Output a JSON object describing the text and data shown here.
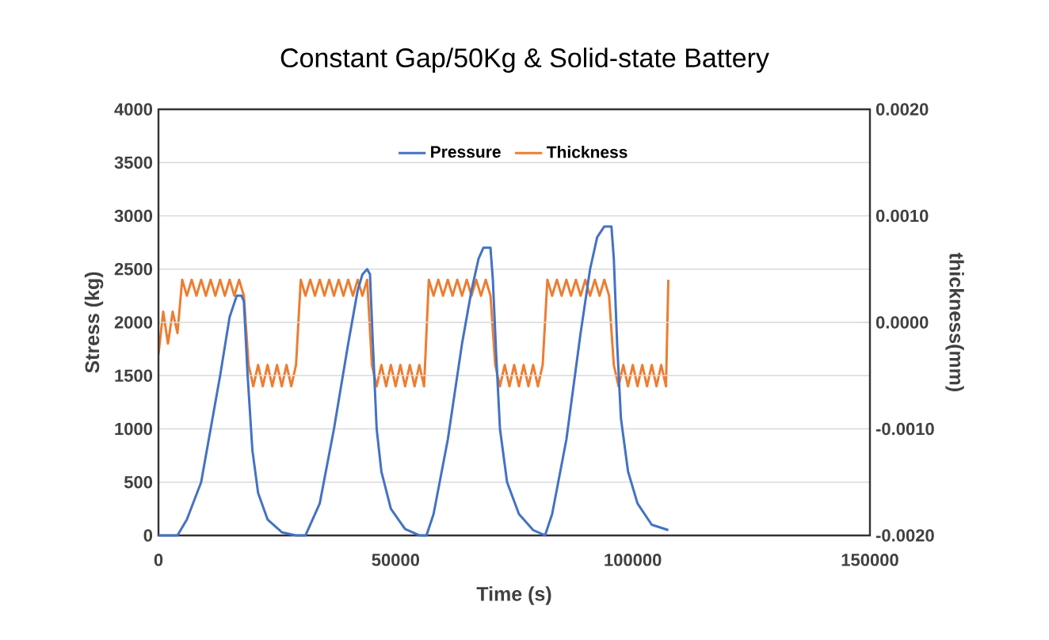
{
  "chart_data": {
    "type": "line",
    "title": "Constant Gap/50Kg & Solid-state Battery",
    "xlabel": "Time (s)",
    "ylabel": "Stress (kg)",
    "y2label": "thickness(mm)",
    "xlim": [
      0,
      150000
    ],
    "xticks": [
      0,
      50000,
      100000,
      150000
    ],
    "ylim": [
      0,
      4000
    ],
    "yticks": [
      0,
      500,
      1000,
      1500,
      2000,
      2500,
      3000,
      3500,
      4000
    ],
    "y2lim": [
      -0.002,
      0.002
    ],
    "y2ticks": [
      {
        "value": -0.002,
        "label": "-0.0020"
      },
      {
        "value": -0.001,
        "label": "-0.0010"
      },
      {
        "value": 0,
        "label": "0.0000"
      },
      {
        "value": 0.001,
        "label": "0.0010"
      },
      {
        "value": 0.002,
        "label": "0.0020"
      }
    ],
    "grid": "y",
    "legend": "top",
    "marker": "none",
    "line_style": "solid",
    "series": [
      {
        "name": "Pressure",
        "color": "#4472c4",
        "x": [
          0,
          4000,
          6000,
          9000,
          11000,
          13000,
          15000,
          16500,
          17500,
          18000,
          18800,
          19800,
          21000,
          23000,
          26000,
          29000,
          31000,
          34000,
          37000,
          40000,
          42000,
          43000,
          44000,
          44600,
          45200,
          46000,
          47000,
          49000,
          52000,
          55000,
          56500,
          58000,
          61000,
          64000,
          66000,
          67500,
          68500,
          70000,
          70500,
          71200,
          72000,
          73500,
          76000,
          79000,
          81500,
          83000,
          86000,
          89000,
          91000,
          92500,
          94000,
          95500,
          96000,
          96700,
          97500,
          99000,
          101000,
          104000,
          107500
        ],
        "values": [
          0,
          0,
          150,
          500,
          1000,
          1500,
          2050,
          2250,
          2250,
          2200,
          1500,
          800,
          400,
          150,
          30,
          0,
          0,
          300,
          1000,
          1800,
          2300,
          2450,
          2500,
          2450,
          1800,
          1000,
          600,
          250,
          60,
          0,
          0,
          200,
          900,
          1800,
          2300,
          2600,
          2700,
          2700,
          2400,
          1700,
          1000,
          500,
          200,
          50,
          0,
          200,
          900,
          1900,
          2500,
          2800,
          2900,
          2900,
          2600,
          1800,
          1100,
          600,
          300,
          100,
          50
        ]
      },
      {
        "name": "Thickness",
        "color": "#ed7d31",
        "axis": "y2",
        "x": [
          0,
          1000,
          2000,
          3000,
          4000,
          5000,
          6000,
          7000,
          8000,
          9000,
          10000,
          11000,
          12000,
          13000,
          14000,
          15000,
          16000,
          17000,
          18000,
          19000,
          20000,
          21000,
          22000,
          23000,
          24000,
          25000,
          26000,
          27000,
          28000,
          29000,
          30000,
          31000,
          32000,
          33000,
          34000,
          35000,
          36000,
          37000,
          38000,
          39000,
          40000,
          41000,
          42000,
          43000,
          44000,
          45000,
          46000,
          47000,
          48000,
          49000,
          50000,
          51000,
          52000,
          53000,
          54000,
          55000,
          56000,
          57000,
          58000,
          59000,
          60000,
          61000,
          62000,
          63000,
          64000,
          65000,
          66000,
          67000,
          68000,
          69000,
          70000,
          71000,
          72000,
          73000,
          74000,
          75000,
          76000,
          77000,
          78000,
          79000,
          80000,
          81000,
          82000,
          83000,
          84000,
          85000,
          86000,
          87000,
          88000,
          89000,
          90000,
          91000,
          92000,
          93000,
          94000,
          95000,
          96000,
          97000,
          98000,
          99000,
          100000,
          101000,
          102000,
          103000,
          104000,
          105000,
          106000,
          107000,
          107500
        ],
        "values": [
          -0.0003,
          0.0001,
          -0.0002,
          0.0001,
          -0.0001,
          0.0004,
          0.00025,
          0.0004,
          0.00025,
          0.0004,
          0.00025,
          0.0004,
          0.00025,
          0.0004,
          0.00025,
          0.0004,
          0.00025,
          0.0004,
          0.00025,
          -0.0004,
          -0.0006,
          -0.0004,
          -0.0006,
          -0.0004,
          -0.0006,
          -0.0004,
          -0.0006,
          -0.0004,
          -0.0006,
          -0.0004,
          0.0004,
          0.00025,
          0.0004,
          0.00025,
          0.0004,
          0.00025,
          0.0004,
          0.00025,
          0.0004,
          0.00025,
          0.0004,
          0.00025,
          0.0004,
          0.00025,
          0.0004,
          -0.0004,
          -0.0006,
          -0.0004,
          -0.0006,
          -0.0004,
          -0.0006,
          -0.0004,
          -0.0006,
          -0.0004,
          -0.0006,
          -0.0004,
          -0.0006,
          0.0004,
          0.00025,
          0.0004,
          0.00025,
          0.0004,
          0.00025,
          0.0004,
          0.00025,
          0.0004,
          0.00025,
          0.0004,
          0.00025,
          0.0004,
          0.00025,
          -0.0004,
          -0.0006,
          -0.0004,
          -0.0006,
          -0.0004,
          -0.0006,
          -0.0004,
          -0.0006,
          -0.0004,
          -0.0006,
          -0.0004,
          0.0004,
          0.00025,
          0.0004,
          0.00025,
          0.0004,
          0.00025,
          0.0004,
          0.00025,
          0.0004,
          0.00025,
          0.0004,
          0.00025,
          0.0004,
          0.00025,
          -0.0004,
          -0.0006,
          -0.0004,
          -0.0006,
          -0.0004,
          -0.0006,
          -0.0004,
          -0.0006,
          -0.0004,
          -0.0006,
          -0.0004,
          -0.0006,
          0.0004
        ]
      }
    ]
  }
}
